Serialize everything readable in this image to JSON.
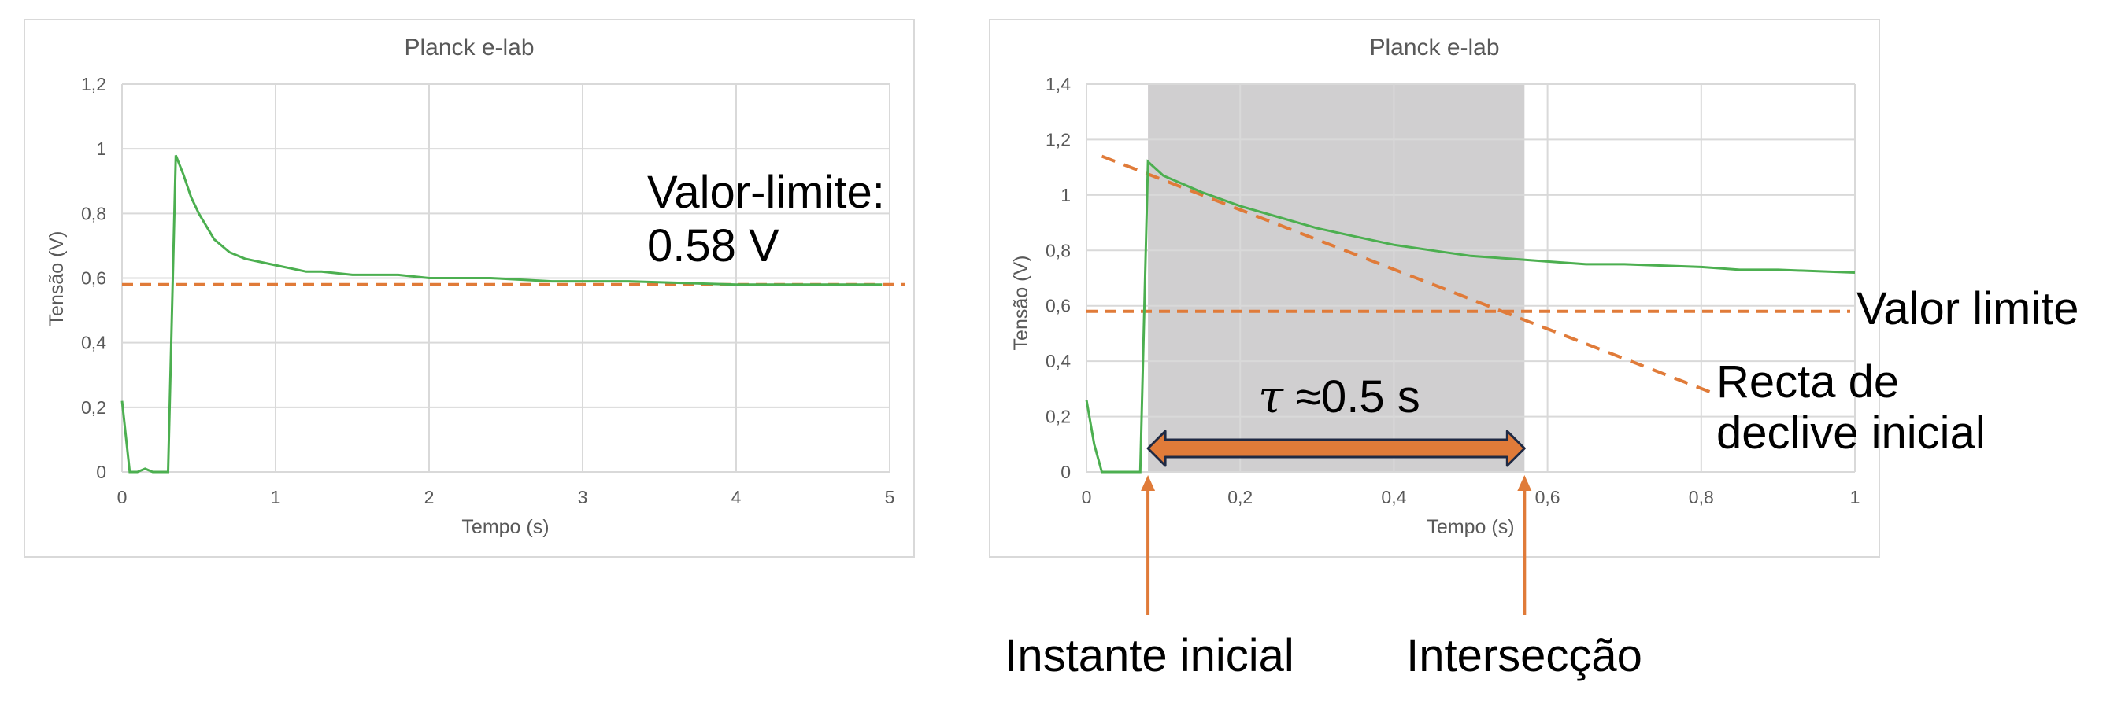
{
  "colors": {
    "grid": "#d9d9d9",
    "frame": "#d9d9d9",
    "series": "#4caf50",
    "reference": "#e07b39",
    "shade": "#d0cfd0",
    "arrow_fill": "#e07b39",
    "arrow_stroke": "#1f2a44",
    "text": "#000000",
    "tick_text": "#595959"
  },
  "chart_data": [
    {
      "type": "line",
      "title": "Planck e-lab",
      "xlabel": "Tempo (s)",
      "ylabel": "Tensão (V)",
      "xlim": [
        0,
        5
      ],
      "ylim": [
        0,
        1.2
      ],
      "x_ticks": [
        "0",
        "1",
        "2",
        "3",
        "4",
        "5"
      ],
      "y_ticks": [
        "0",
        "0,2",
        "0,4",
        "0,6",
        "0,8",
        "1",
        "1,2"
      ],
      "grid": true,
      "series": [
        {
          "x": [
            0,
            0.05,
            0.1,
            0.15,
            0.2,
            0.25,
            0.3,
            0.35,
            0.4,
            0.45,
            0.5,
            0.6,
            0.7,
            0.8,
            0.9,
            1.0,
            1.1,
            1.2,
            1.3,
            1.5,
            1.8,
            2.0,
            2.4,
            2.8,
            3.3,
            4.0,
            4.95
          ],
          "y": [
            0.22,
            0.0,
            0.0,
            0.01,
            0.0,
            0.0,
            0.0,
            0.98,
            0.92,
            0.85,
            0.8,
            0.72,
            0.68,
            0.66,
            0.65,
            0.64,
            0.63,
            0.62,
            0.62,
            0.61,
            0.61,
            0.6,
            0.6,
            0.59,
            0.59,
            0.58,
            0.58
          ]
        }
      ],
      "reference_lines": [
        {
          "kind": "horizontal",
          "y": 0.58
        }
      ],
      "annotations": [
        {
          "text_line1": "Valor-limite:",
          "text_line2": "0.58 V"
        }
      ]
    },
    {
      "type": "line",
      "title": "Planck e-lab",
      "xlabel": "Tempo (s)",
      "ylabel": "Tensão (V)",
      "xlim": [
        0,
        1
      ],
      "ylim": [
        0,
        1.4
      ],
      "x_ticks": [
        "0",
        "0,2",
        "0,4",
        "0,6",
        "0,8",
        "1"
      ],
      "y_ticks": [
        "0",
        "0,2",
        "0,4",
        "0,6",
        "0,8",
        "1",
        "1,2",
        "1,4"
      ],
      "grid": true,
      "shaded_region": [
        0.08,
        0.57
      ],
      "series": [
        {
          "x": [
            0,
            0.01,
            0.02,
            0.03,
            0.05,
            0.07,
            0.08,
            0.1,
            0.15,
            0.2,
            0.25,
            0.3,
            0.35,
            0.4,
            0.45,
            0.5,
            0.55,
            0.6,
            0.65,
            0.7,
            0.8,
            0.85,
            0.9,
            1.0
          ],
          "y": [
            0.26,
            0.1,
            0.0,
            0.0,
            0.0,
            0.0,
            1.12,
            1.07,
            1.01,
            0.96,
            0.92,
            0.88,
            0.85,
            0.82,
            0.8,
            0.78,
            0.77,
            0.76,
            0.75,
            0.75,
            0.74,
            0.73,
            0.73,
            0.72
          ]
        }
      ],
      "reference_lines": [
        {
          "kind": "horizontal",
          "y": 0.58
        },
        {
          "kind": "segment",
          "x1": 0.02,
          "y1": 1.14,
          "x2": 0.82,
          "y2": 0.28
        }
      ],
      "annotations": [
        {
          "text": "Valor limite"
        },
        {
          "text_line1": "Recta de",
          "text_line2": "declive inicial"
        },
        {
          "symbol": "τ",
          "text": " ≈0.5 s"
        },
        {
          "text": "Instante inicial",
          "x": 0.08
        },
        {
          "text": "Intersecção",
          "x": 0.57
        }
      ],
      "interval_arrow": {
        "from": 0.08,
        "to": 0.57
      }
    }
  ]
}
